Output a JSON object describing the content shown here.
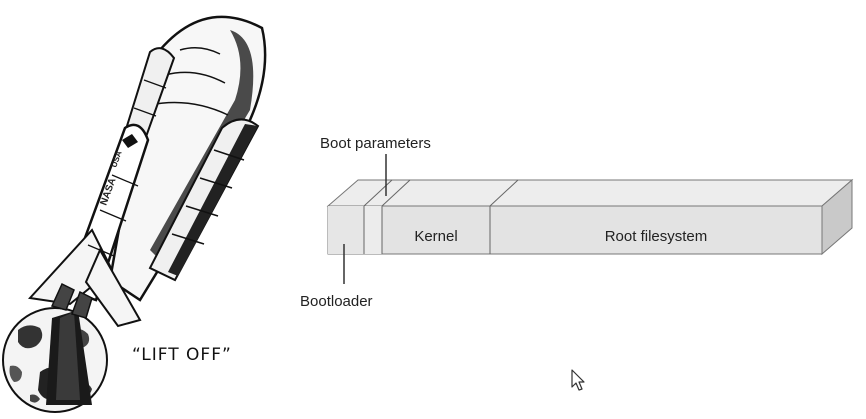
{
  "illustration": {
    "caption": "“LIFT OFF”",
    "orbiter_marking": "NASA",
    "orbiter_flag": "USA"
  },
  "diagram": {
    "segments": {
      "bootloader": "",
      "boot_parameters": "",
      "kernel": "Kernel",
      "root_filesystem": "Root filesystem"
    },
    "callouts": {
      "boot_parameters": "Boot parameters",
      "bootloader": "Bootloader"
    },
    "colors": {
      "front_face": "#e3e3e3",
      "top_face": "#ededed",
      "side_face": "#c9c9c9",
      "edge": "#777777"
    }
  },
  "cursor": {
    "icon": "arrow-cursor-icon"
  }
}
